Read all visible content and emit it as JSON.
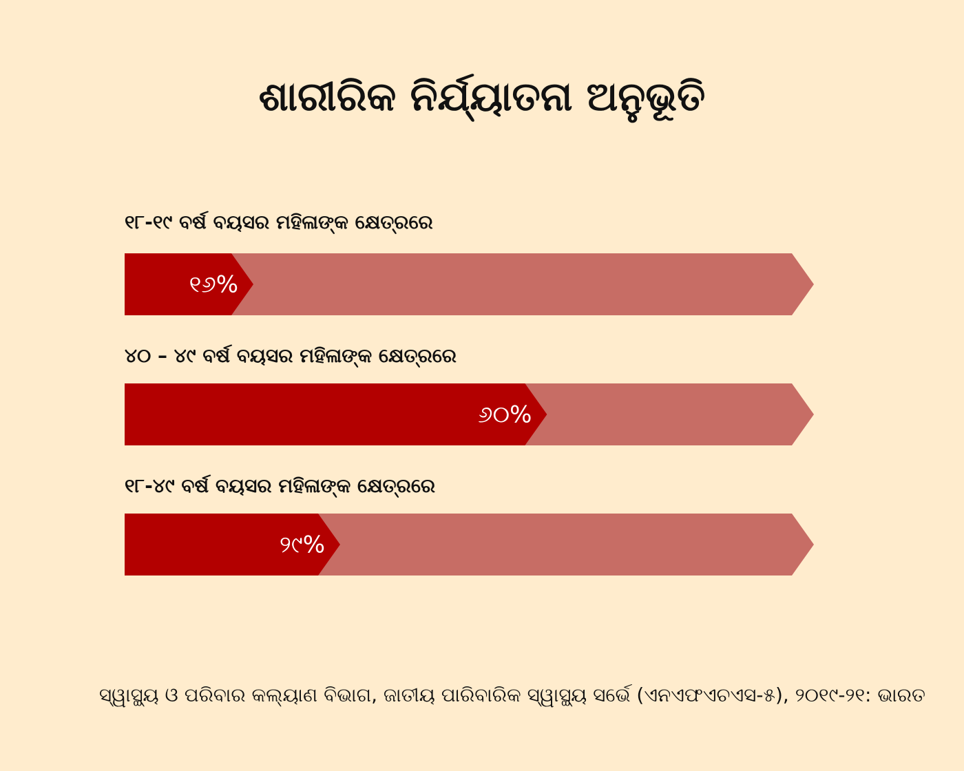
{
  "chart_data": {
    "type": "bar",
    "orientation": "horizontal",
    "title": "ଶାରୀରିକ ନିର୍ଯ୍ୟାତନା ଅନୁଭୂତି",
    "categories": [
      "୧୮-୧୯ ବର୍ଷ ବୟସର ମହିଳାଙ୍କ କ୍ଷେତ୍ରରେ",
      "୪୦ – ୪୯ ବର୍ଷ ବୟସର ମହିଳାଙ୍କ କ୍ଷେତ୍ରରେ",
      "୧୮-୪୯ ବର୍ଷ ବୟସର ମହିଳାଙ୍କ କ୍ଷେତ୍ରରେ"
    ],
    "values": [
      16,
      60,
      29
    ],
    "value_labels": [
      "୧୬%",
      "୬୦%",
      "୨୯%"
    ],
    "xlim": [
      0,
      100
    ],
    "grid": false,
    "legend": "none",
    "colors": {
      "fill": "#b30000",
      "track": "#c76d65",
      "background": "#ffeccd"
    }
  },
  "source": "ସ୍ୱାସ୍ଥ୍ୟ ଓ ପରିବାର କଲ୍ୟାଣ ବିଭାଗ, ଜାତୀୟ ପାରିବାରିକ ସ୍ୱାସ୍ଥ୍ୟ ସର୍ଭେ (ଏନଏଫଏଚଏସ-୫), ୨୦୧୯-୨୧: ଭାରତ"
}
